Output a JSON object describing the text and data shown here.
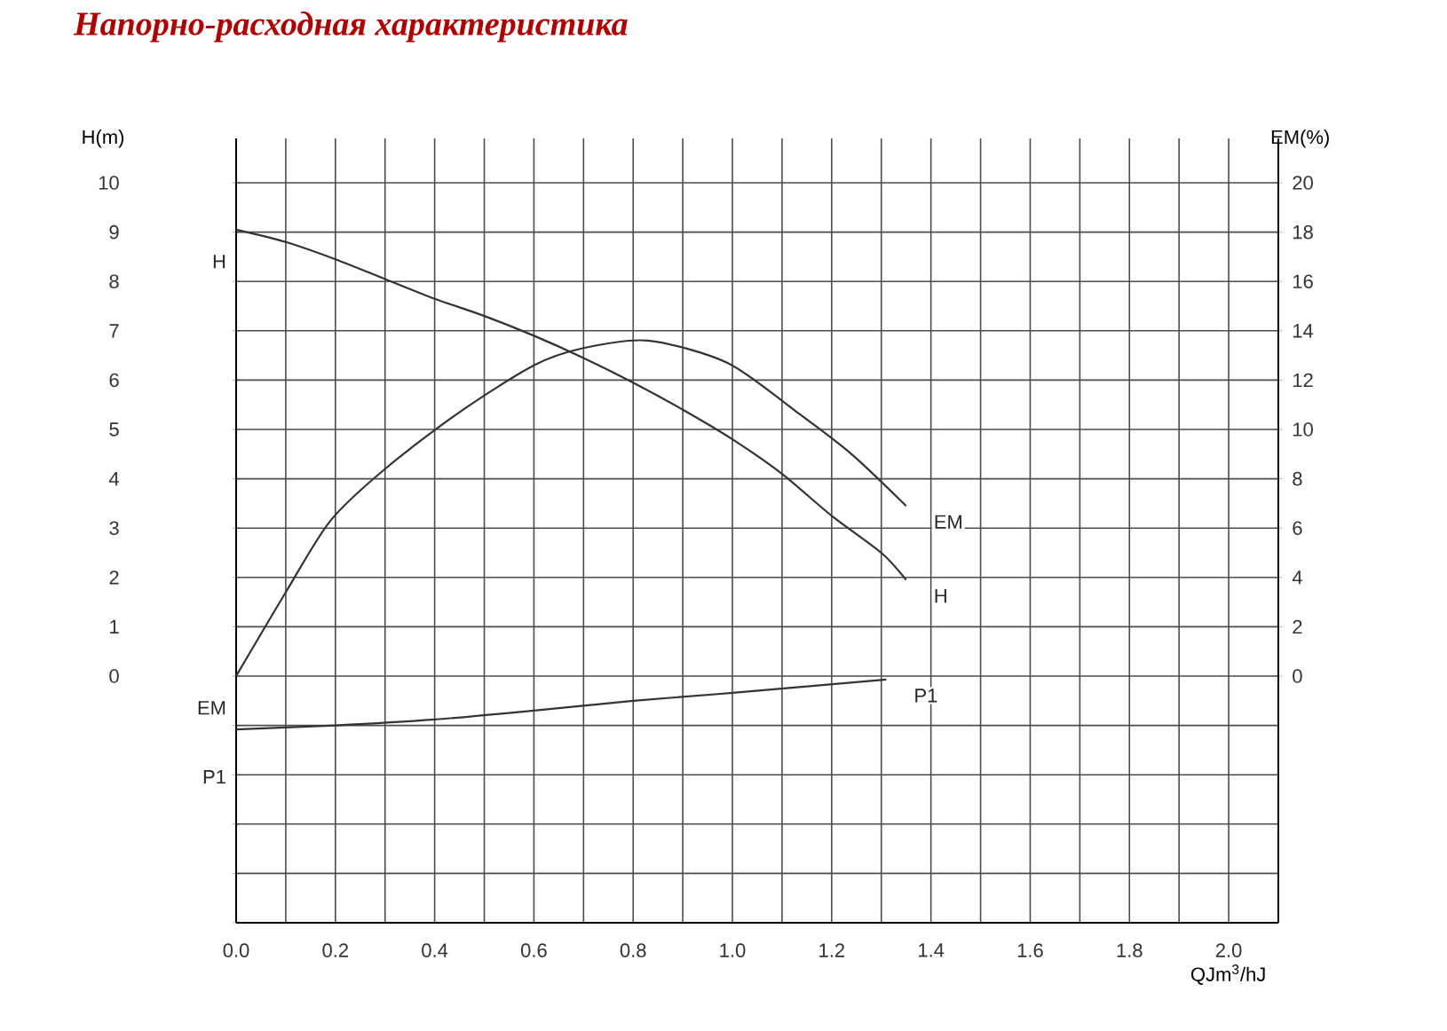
{
  "chart_data": {
    "type": "line",
    "title": "Напорно-расходная характеристика",
    "xlabel": "QJm$^{3}$/hJ",
    "ylabel": "H(m)",
    "y2label": "EM(%)",
    "xlim": [
      0,
      2.1
    ],
    "ylim": [
      -5,
      10.9
    ],
    "y2lim": [
      -10,
      21.8
    ],
    "xticks": [
      {
        "value": 0,
        "label": "0.0"
      },
      {
        "value": 0.2,
        "label": "0.2"
      },
      {
        "value": 0.4,
        "label": "0.4"
      },
      {
        "value": 0.6,
        "label": "0.6"
      },
      {
        "value": 0.8,
        "label": "0.8"
      },
      {
        "value": 1.0,
        "label": "1.0"
      },
      {
        "value": 1.2,
        "label": "1.2"
      },
      {
        "value": 1.4,
        "label": "1.4"
      },
      {
        "value": 1.6,
        "label": "1.6"
      },
      {
        "value": 1.8,
        "label": "1.8"
      },
      {
        "value": 2.0,
        "label": "2.0"
      }
    ],
    "yticks": [
      {
        "value": -5,
        "label": null
      },
      {
        "value": -4,
        "label": null
      },
      {
        "value": -3,
        "label": null
      },
      {
        "value": -2,
        "label": null
      },
      {
        "value": -1,
        "label": null
      },
      0,
      1,
      2,
      3,
      4,
      5,
      6,
      7,
      8,
      9,
      10
    ],
    "y2ticks": [
      0,
      2,
      4,
      6,
      8,
      10,
      12,
      14,
      16,
      18,
      20
    ],
    "grid": true,
    "marker": "none",
    "line_style": "solid",
    "series": [
      {
        "name": "H",
        "color": "#333333",
        "x": [
          0,
          0.1,
          0.2,
          0.3,
          0.4,
          0.5,
          0.6,
          0.7,
          0.8,
          0.9,
          1.0,
          1.1,
          1.2,
          1.3,
          1.35
        ],
        "values": [
          9.05,
          8.8,
          8.45,
          8.05,
          7.65,
          7.3,
          6.9,
          6.45,
          5.95,
          5.4,
          4.8,
          4.1,
          3.25,
          2.5,
          1.95
        ]
      },
      {
        "name": "EM",
        "color": "#333333",
        "axis": "y2",
        "x": [
          0,
          0.1,
          0.19,
          0.3,
          0.45,
          0.6,
          0.7,
          0.83,
          0.99,
          1.13,
          1.24,
          1.35
        ],
        "values": [
          0,
          3.4,
          6.3,
          8.4,
          10.7,
          12.6,
          13.3,
          13.6,
          12.7,
          10.7,
          9.0,
          6.9
        ]
      },
      {
        "name": "P1",
        "color": "#333333",
        "x": [
          0,
          0.2,
          0.4,
          0.6,
          0.8,
          1.0,
          1.31
        ],
        "values": [
          -1.08,
          -1.0,
          -0.88,
          -0.7,
          -0.5,
          -0.34,
          -0.07
        ]
      }
    ],
    "annotations": [
      "H",
      "EM",
      "P1"
    ]
  }
}
